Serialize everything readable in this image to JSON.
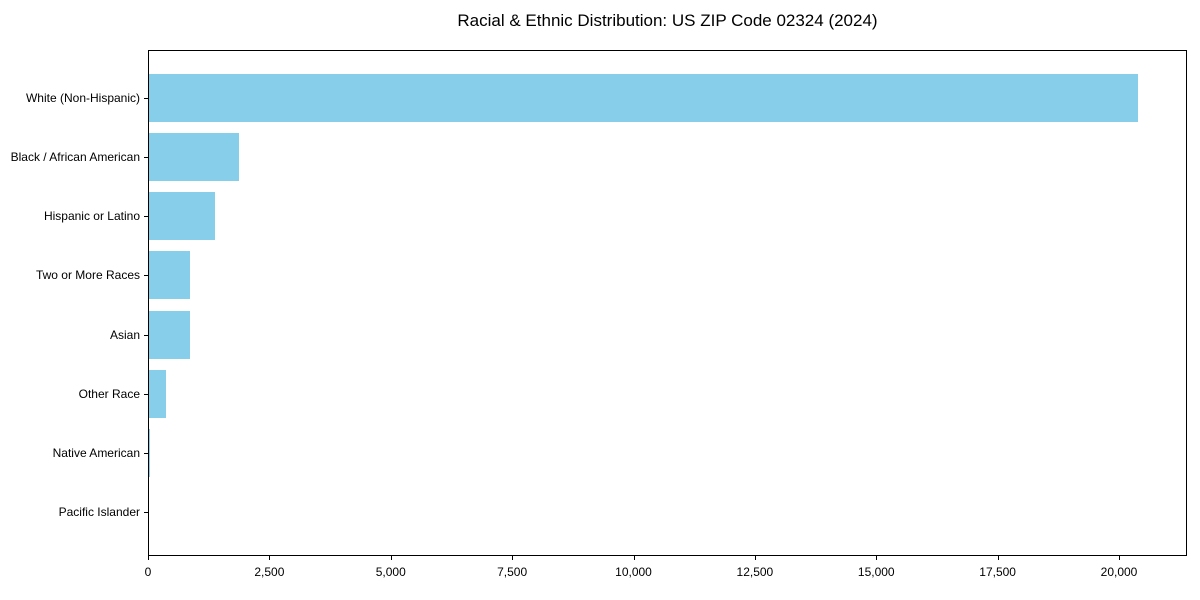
{
  "chart_data": {
    "type": "bar",
    "orientation": "horizontal",
    "title": "Racial & Ethnic Distribution: US ZIP Code 02324 (2024)",
    "categories": [
      "White (Non-Hispanic)",
      "Black / African American",
      "Hispanic or Latino",
      "Two or More Races",
      "Asian",
      "Other Race",
      "Native American",
      "Pacific Islander"
    ],
    "values": [
      20390,
      1880,
      1370,
      870,
      865,
      370,
      25,
      5
    ],
    "xlabel": "",
    "ylabel": "",
    "xlim": [
      0,
      21400
    ],
    "xticks": [
      0,
      2500,
      5000,
      7500,
      10000,
      12500,
      15000,
      17500,
      20000
    ],
    "xtick_labels": [
      "0",
      "2,500",
      "5,000",
      "7,500",
      "10,000",
      "12,500",
      "15,000",
      "17,500",
      "20,000"
    ],
    "bar_color": "#87CEEB",
    "frame_color": "#000000",
    "text_color": "#000000",
    "background_color": "#ffffff",
    "grid": false,
    "legend": false
  }
}
